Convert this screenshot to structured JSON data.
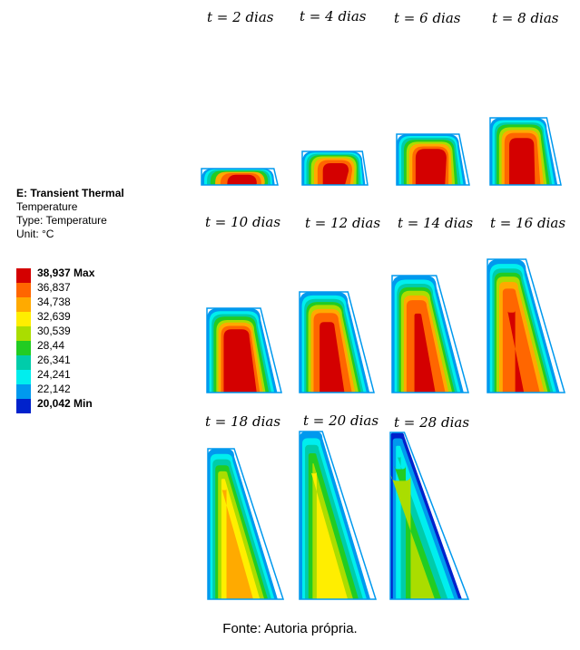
{
  "legend": {
    "title": "E: Transient Thermal",
    "subtitle": "Temperature",
    "type_line": "Type: Temperature",
    "unit_line": "Unit: °C",
    "levels": [
      {
        "label": "38,937 Max",
        "color": "#d40000",
        "bold": true
      },
      {
        "label": "36,837",
        "color": "#ff6600",
        "bold": false
      },
      {
        "label": "34,738",
        "color": "#ffaa00",
        "bold": false
      },
      {
        "label": "32,639",
        "color": "#ffee00",
        "bold": false
      },
      {
        "label": "30,539",
        "color": "#aadd00",
        "bold": false
      },
      {
        "label": "28,44",
        "color": "#22cc22",
        "bold": false
      },
      {
        "label": "26,341",
        "color": "#00ccaa",
        "bold": false
      },
      {
        "label": "24,241",
        "color": "#00eeee",
        "bold": false
      },
      {
        "label": "22,142",
        "color": "#0099ee",
        "bold": false
      },
      {
        "label": "20,042 Min",
        "color": "#0022cc",
        "bold": true
      }
    ]
  },
  "snapshots": [
    {
      "time": "2 dias"
    },
    {
      "time": "4 dias"
    },
    {
      "time": "6 dias"
    },
    {
      "time": "8 dias"
    },
    {
      "time": "10 dias"
    },
    {
      "time": "12 dias"
    },
    {
      "time": "14 dias"
    },
    {
      "time": "16 dias"
    },
    {
      "time": "18 dias"
    },
    {
      "time": "20 dias"
    },
    {
      "time": "28 dias"
    }
  ],
  "label_prefix": "t",
  "caption": "Fonte: Autoria própria."
}
